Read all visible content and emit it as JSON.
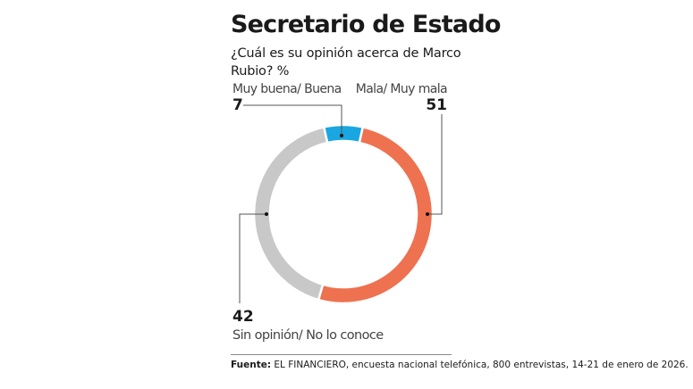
{
  "chart_data": {
    "type": "pie",
    "variant": "donut",
    "title": "Secretario de Estado",
    "subtitle": "¿Cuál es su opinión acerca de Marco Rubio? %",
    "categories": [
      "Muy buena/ Buena",
      "Mala/ Muy mala",
      "Sin opinión/ No lo conoce"
    ],
    "values": [
      7,
      51,
      42
    ],
    "value_labels": [
      "7",
      "51",
      "42"
    ],
    "colors": [
      "#1aa6e0",
      "#ee7150",
      "#c8c8c8"
    ],
    "source_label": "Fuente:",
    "source_text": "EL FINANCIERO, encuesta nacional telefónica, 800 entrevistas, 14-21 de enero de 2026."
  }
}
